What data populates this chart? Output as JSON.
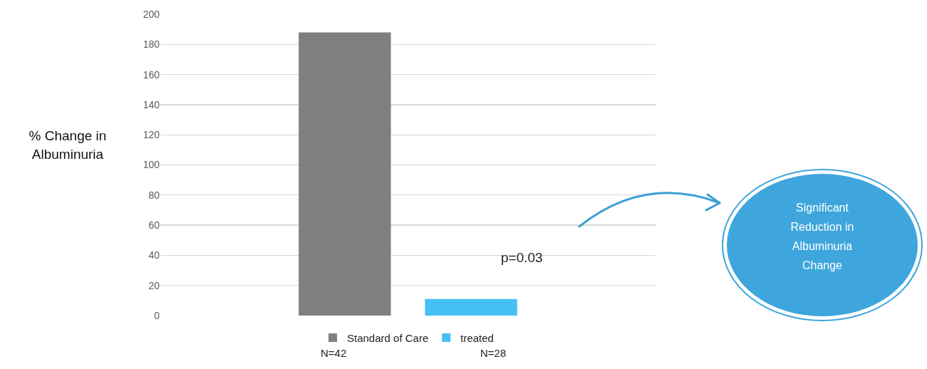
{
  "chart_data": {
    "type": "bar",
    "ylabel": "% Change in Albuminuria",
    "categories": [
      null
    ],
    "series": [
      {
        "name": "Standard of Care",
        "color": "#7f7f7f",
        "values": [
          188
        ]
      },
      {
        "name": "treated",
        "color": "#45bff5",
        "values": [
          11
        ]
      }
    ],
    "ylim": [
      0,
      200
    ],
    "yticks": [
      0,
      20,
      40,
      60,
      80,
      100,
      120,
      140,
      160,
      180,
      200
    ],
    "grid": "y",
    "legend": "bottom",
    "annotations": [
      "p=0.03",
      "N=42",
      "N=28",
      "Significant Reduction in Albuminuria Change"
    ]
  }
}
